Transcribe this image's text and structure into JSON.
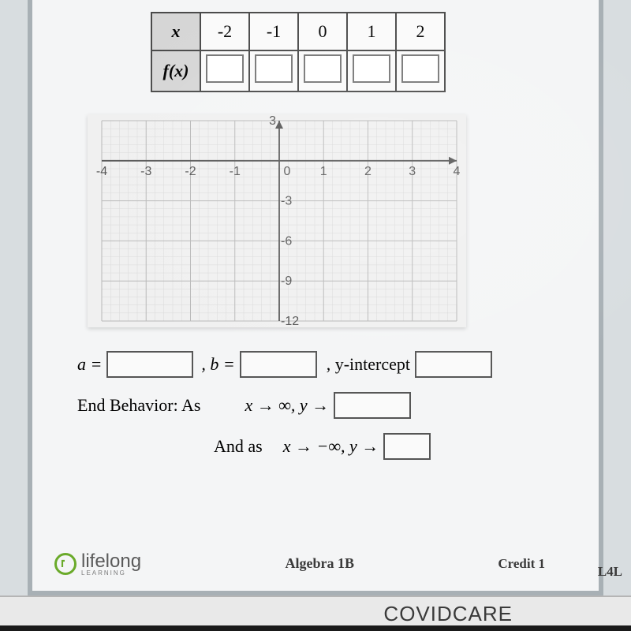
{
  "table": {
    "header_var": "x",
    "fx_label": "f(x)",
    "x_values": [
      "-2",
      "-1",
      "0",
      "1",
      "2"
    ]
  },
  "graph": {
    "background": "#f0f0f0",
    "minor_grid": "#d8d8d8",
    "major_grid": "#b8b8b8",
    "axis_color": "#555555",
    "label_color": "#555555",
    "x_min": -4,
    "x_max": 4,
    "y_min": -12,
    "y_max": 3,
    "x_ticks": [
      -4,
      -3,
      -2,
      -1,
      0,
      1,
      2,
      3,
      4
    ],
    "y_ticks": [
      3,
      0,
      -3,
      -6,
      -9,
      -12
    ],
    "label_fontsize": 16
  },
  "form": {
    "a_label": "a =",
    "b_label": ", b =",
    "yint_label": ", y-intercept",
    "end_behavior_label": "End Behavior:  As",
    "limit_pos": "x → ∞, y →",
    "and_as": "And as",
    "limit_neg": "x → −∞, y →"
  },
  "footer": {
    "logo_main": "lifelong",
    "logo_sub": "LEARNING",
    "course": "Algebra 1B",
    "credit": "Credit 1",
    "edge": "L4L"
  },
  "bottom": {
    "covid": "COVIDCARE"
  },
  "colors": {
    "page_bg": "#f4f5f6",
    "border": "#a8b0b5",
    "cell_border": "#4a4a4a",
    "header_cell": "#d6d6d6"
  }
}
